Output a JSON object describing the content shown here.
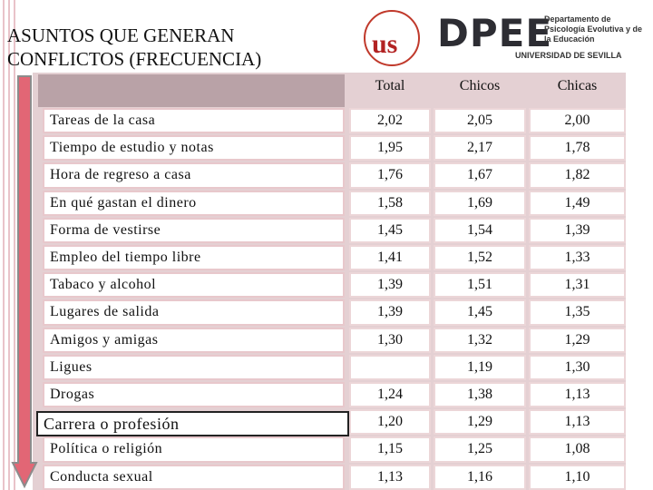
{
  "header": {
    "title": "ASUNTOS QUE GENERAN CONFLICTOS (FRECUENCIA)",
    "logo": "DPEE",
    "department": "Departamento de Psicología Evolutiva y de la Educación",
    "university": "UNIVERSIDAD DE SEVILLA"
  },
  "table": {
    "columns": [
      "Total",
      "Chicos",
      "Chicas"
    ],
    "rows": [
      [
        "Tareas de la casa",
        "2,02",
        "2,05",
        "2,00"
      ],
      [
        "Tiempo de estudio y notas",
        "1,95",
        "2,17",
        "1,78"
      ],
      [
        "Hora de regreso a casa",
        "1,76",
        "1,67",
        "1,82"
      ],
      [
        "En qué gastan el dinero",
        "1,58",
        "1,69",
        "1,49"
      ],
      [
        "Forma de vestirse",
        "1,45",
        "1,54",
        "1,39"
      ],
      [
        "Empleo del tiempo libre",
        "1,41",
        "1,52",
        "1,33"
      ],
      [
        "Tabaco y alcohol",
        "1,39",
        "1,51",
        "1,31"
      ],
      [
        "Lugares de salida",
        "1,39",
        "1,45",
        "1,35"
      ],
      [
        "Amigos y amigas",
        "1,30",
        "1,32",
        "1,29"
      ],
      [
        "Ligues",
        null,
        "1,19",
        "1,30"
      ],
      [
        "Drogas",
        "1,24",
        "1,38",
        "1,13"
      ],
      [
        "Carrera o profesión",
        "1,20",
        "1,29",
        "1,13"
      ],
      [
        "Política o religión",
        "1,15",
        "1,25",
        "1,08"
      ],
      [
        "Conducta sexual",
        "1,13",
        "1,16",
        "1,10"
      ]
    ]
  }
}
